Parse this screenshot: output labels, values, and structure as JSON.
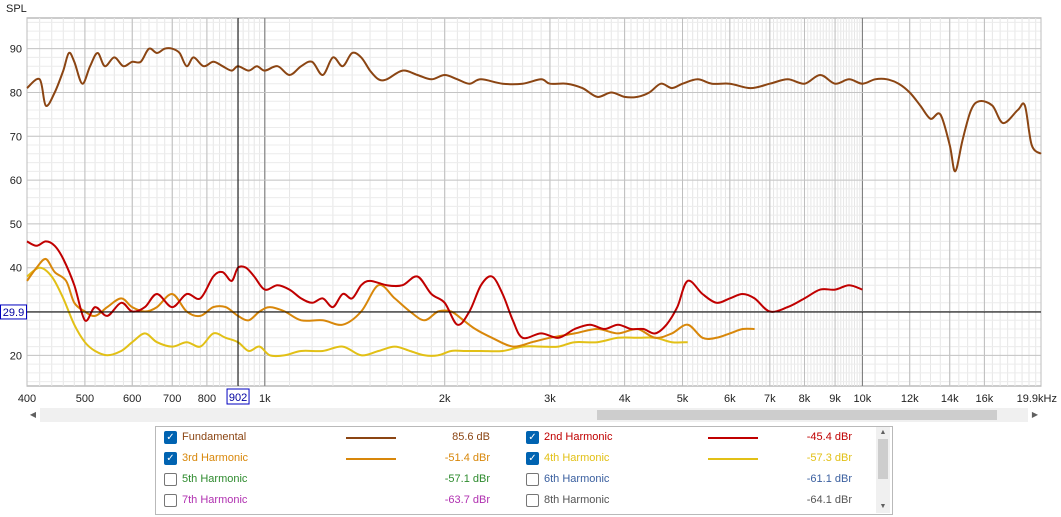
{
  "chart_data": {
    "type": "line",
    "ylabel": "SPL",
    "x_scale": "log",
    "xlim": [
      400,
      19900
    ],
    "ylim": [
      13,
      97
    ],
    "x_ticks": [
      400,
      500,
      600,
      700,
      800,
      1000,
      2000,
      3000,
      4000,
      5000,
      6000,
      7000,
      8000,
      9000,
      10000,
      12000,
      14000,
      16000,
      19900
    ],
    "x_tick_labels": [
      "400",
      "500",
      "600",
      "700",
      "800",
      "1k",
      "2k",
      "3k",
      "4k",
      "5k",
      "6k",
      "7k",
      "8k",
      "9k",
      "10k",
      "12k",
      "14k",
      "16k",
      "19.9kHz"
    ],
    "y_ticks": [
      20,
      30,
      40,
      50,
      60,
      70,
      80,
      90
    ],
    "grid": true,
    "cursor": {
      "x": 902,
      "y": 29.9,
      "x_label": "902",
      "y_label": "29.9"
    },
    "series": [
      {
        "name": "Fundamental",
        "color": "#8b4513",
        "points": [
          [
            400,
            81
          ],
          [
            420,
            83
          ],
          [
            430,
            77
          ],
          [
            445,
            80
          ],
          [
            460,
            85
          ],
          [
            470,
            89
          ],
          [
            480,
            87
          ],
          [
            495,
            82
          ],
          [
            510,
            86
          ],
          [
            525,
            89
          ],
          [
            540,
            86
          ],
          [
            560,
            88
          ],
          [
            580,
            86
          ],
          [
            600,
            87
          ],
          [
            620,
            87
          ],
          [
            640,
            90
          ],
          [
            660,
            89
          ],
          [
            680,
            90
          ],
          [
            700,
            90
          ],
          [
            720,
            89
          ],
          [
            740,
            86
          ],
          [
            760,
            88
          ],
          [
            790,
            86
          ],
          [
            820,
            87
          ],
          [
            850,
            86
          ],
          [
            880,
            85
          ],
          [
            902,
            86
          ],
          [
            940,
            85
          ],
          [
            970,
            86
          ],
          [
            1000,
            85
          ],
          [
            1050,
            86
          ],
          [
            1100,
            84
          ],
          [
            1150,
            86
          ],
          [
            1200,
            87
          ],
          [
            1250,
            84
          ],
          [
            1300,
            88
          ],
          [
            1350,
            86
          ],
          [
            1400,
            89
          ],
          [
            1450,
            88
          ],
          [
            1500,
            85
          ],
          [
            1550,
            83
          ],
          [
            1600,
            83
          ],
          [
            1700,
            85
          ],
          [
            1800,
            84
          ],
          [
            1900,
            83
          ],
          [
            2000,
            84
          ],
          [
            2100,
            83
          ],
          [
            2200,
            82
          ],
          [
            2300,
            83
          ],
          [
            2500,
            82
          ],
          [
            2700,
            82
          ],
          [
            2900,
            83
          ],
          [
            3000,
            82
          ],
          [
            3200,
            82
          ],
          [
            3400,
            81
          ],
          [
            3600,
            79
          ],
          [
            3800,
            80
          ],
          [
            4000,
            79
          ],
          [
            4200,
            79
          ],
          [
            4400,
            80
          ],
          [
            4600,
            82
          ],
          [
            4800,
            81
          ],
          [
            5000,
            82
          ],
          [
            5300,
            83
          ],
          [
            5600,
            82
          ],
          [
            6000,
            82
          ],
          [
            6500,
            81
          ],
          [
            7000,
            82
          ],
          [
            7500,
            83
          ],
          [
            8000,
            82
          ],
          [
            8500,
            84
          ],
          [
            9000,
            82
          ],
          [
            9500,
            83
          ],
          [
            10000,
            82
          ],
          [
            10500,
            83
          ],
          [
            11000,
            83
          ],
          [
            11500,
            82
          ],
          [
            12000,
            80
          ],
          [
            12500,
            77
          ],
          [
            13000,
            74
          ],
          [
            13500,
            75
          ],
          [
            14000,
            68
          ],
          [
            14300,
            62
          ],
          [
            14700,
            69
          ],
          [
            15200,
            76
          ],
          [
            15700,
            78
          ],
          [
            16500,
            77
          ],
          [
            17200,
            73
          ],
          [
            18200,
            76
          ],
          [
            18700,
            77
          ],
          [
            19200,
            68
          ],
          [
            19900,
            66
          ]
        ]
      },
      {
        "name": "2nd Harmonic",
        "color": "#c00000",
        "points": [
          [
            400,
            46
          ],
          [
            415,
            45
          ],
          [
            430,
            46
          ],
          [
            445,
            45
          ],
          [
            460,
            42
          ],
          [
            480,
            36
          ],
          [
            500,
            28
          ],
          [
            520,
            31
          ],
          [
            545,
            29
          ],
          [
            575,
            32
          ],
          [
            600,
            30
          ],
          [
            630,
            31
          ],
          [
            660,
            34
          ],
          [
            700,
            31
          ],
          [
            740,
            34
          ],
          [
            780,
            33
          ],
          [
            820,
            38
          ],
          [
            850,
            39
          ],
          [
            880,
            37
          ],
          [
            902,
            40
          ],
          [
            930,
            40
          ],
          [
            960,
            38
          ],
          [
            1000,
            35
          ],
          [
            1050,
            36
          ],
          [
            1100,
            35
          ],
          [
            1150,
            33
          ],
          [
            1200,
            32
          ],
          [
            1250,
            33
          ],
          [
            1300,
            31
          ],
          [
            1350,
            34
          ],
          [
            1400,
            33
          ],
          [
            1450,
            36
          ],
          [
            1500,
            37
          ],
          [
            1600,
            36
          ],
          [
            1700,
            36
          ],
          [
            1800,
            38
          ],
          [
            1900,
            34
          ],
          [
            2000,
            32
          ],
          [
            2100,
            27
          ],
          [
            2200,
            30
          ],
          [
            2300,
            36
          ],
          [
            2400,
            38
          ],
          [
            2500,
            34
          ],
          [
            2600,
            28
          ],
          [
            2700,
            24
          ],
          [
            2900,
            25
          ],
          [
            3100,
            24
          ],
          [
            3300,
            26
          ],
          [
            3500,
            27
          ],
          [
            3700,
            26
          ],
          [
            3900,
            27
          ],
          [
            4100,
            26
          ],
          [
            4300,
            26
          ],
          [
            4500,
            25
          ],
          [
            4700,
            27
          ],
          [
            4900,
            31
          ],
          [
            5100,
            37
          ],
          [
            5400,
            34
          ],
          [
            5700,
            32
          ],
          [
            6000,
            33
          ],
          [
            6300,
            34
          ],
          [
            6600,
            33
          ],
          [
            7000,
            30
          ],
          [
            7500,
            31
          ],
          [
            8000,
            33
          ],
          [
            8500,
            35
          ],
          [
            9000,
            35
          ],
          [
            9500,
            36
          ],
          [
            10000,
            35
          ]
        ]
      },
      {
        "name": "3rd Harmonic",
        "color": "#d8870a",
        "points": [
          [
            400,
            37
          ],
          [
            415,
            40
          ],
          [
            430,
            42
          ],
          [
            445,
            39
          ],
          [
            465,
            37
          ],
          [
            480,
            32
          ],
          [
            500,
            30
          ],
          [
            520,
            29
          ],
          [
            545,
            31
          ],
          [
            575,
            33
          ],
          [
            600,
            31
          ],
          [
            630,
            30
          ],
          [
            660,
            31
          ],
          [
            700,
            34
          ],
          [
            740,
            30
          ],
          [
            780,
            29
          ],
          [
            820,
            31
          ],
          [
            860,
            31
          ],
          [
            902,
            29
          ],
          [
            940,
            28
          ],
          [
            980,
            30
          ],
          [
            1020,
            31
          ],
          [
            1080,
            30
          ],
          [
            1150,
            28
          ],
          [
            1250,
            28
          ],
          [
            1350,
            27
          ],
          [
            1450,
            30
          ],
          [
            1550,
            36
          ],
          [
            1650,
            33
          ],
          [
            1750,
            30
          ],
          [
            1850,
            28
          ],
          [
            1950,
            30
          ],
          [
            2050,
            30
          ],
          [
            2150,
            28
          ],
          [
            2250,
            26
          ],
          [
            2400,
            24
          ],
          [
            2600,
            22
          ],
          [
            2800,
            23
          ],
          [
            3000,
            24
          ],
          [
            3300,
            25
          ],
          [
            3600,
            26
          ],
          [
            3900,
            25
          ],
          [
            4200,
            26
          ],
          [
            4500,
            24
          ],
          [
            4800,
            25
          ],
          [
            5100,
            27
          ],
          [
            5400,
            24
          ],
          [
            5700,
            24
          ],
          [
            6000,
            25
          ],
          [
            6300,
            26
          ],
          [
            6600,
            26
          ]
        ]
      },
      {
        "name": "4th Harmonic",
        "color": "#e2c016",
        "points": [
          [
            400,
            38
          ],
          [
            420,
            40
          ],
          [
            440,
            38
          ],
          [
            460,
            33
          ],
          [
            480,
            27
          ],
          [
            500,
            23
          ],
          [
            520,
            21
          ],
          [
            545,
            20
          ],
          [
            575,
            21
          ],
          [
            600,
            23
          ],
          [
            630,
            25
          ],
          [
            660,
            23
          ],
          [
            700,
            22
          ],
          [
            740,
            23
          ],
          [
            780,
            22
          ],
          [
            820,
            25
          ],
          [
            860,
            24
          ],
          [
            902,
            23
          ],
          [
            940,
            21
          ],
          [
            980,
            22
          ],
          [
            1020,
            20
          ],
          [
            1080,
            20
          ],
          [
            1150,
            21
          ],
          [
            1250,
            21
          ],
          [
            1350,
            22
          ],
          [
            1450,
            20
          ],
          [
            1550,
            21
          ],
          [
            1650,
            22
          ],
          [
            1750,
            21
          ],
          [
            1850,
            20
          ],
          [
            1950,
            20
          ],
          [
            2050,
            21
          ],
          [
            2150,
            21
          ],
          [
            2300,
            21
          ],
          [
            2500,
            21
          ],
          [
            2700,
            22
          ],
          [
            2900,
            22
          ],
          [
            3100,
            22
          ],
          [
            3300,
            23
          ],
          [
            3600,
            23
          ],
          [
            3900,
            24
          ],
          [
            4200,
            24
          ],
          [
            4500,
            24
          ],
          [
            4800,
            23
          ],
          [
            5100,
            23
          ]
        ]
      }
    ]
  },
  "legend": {
    "items": [
      {
        "label": "Fundamental",
        "value": "85.6 dB",
        "checked": true,
        "color": "#8b4513"
      },
      {
        "label": "2nd Harmonic",
        "value": "-45.4 dBr",
        "checked": true,
        "color": "#c00000"
      },
      {
        "label": "3rd Harmonic",
        "value": "-51.4 dBr",
        "checked": true,
        "color": "#d8870a"
      },
      {
        "label": "4th Harmonic",
        "value": "-57.3 dBr",
        "checked": true,
        "color": "#e2c016"
      },
      {
        "label": "5th Harmonic",
        "value": "-57.1 dBr",
        "checked": false,
        "color": "#2e8b2e"
      },
      {
        "label": "6th Harmonic",
        "value": "-61.1 dBr",
        "checked": false,
        "color": "#3a5f9f"
      },
      {
        "label": "7th Harmonic",
        "value": "-63.7 dBr",
        "checked": false,
        "color": "#b030b0"
      },
      {
        "label": "8th Harmonic",
        "value": "-64.1 dBr",
        "checked": false,
        "color": "#555555"
      }
    ]
  }
}
